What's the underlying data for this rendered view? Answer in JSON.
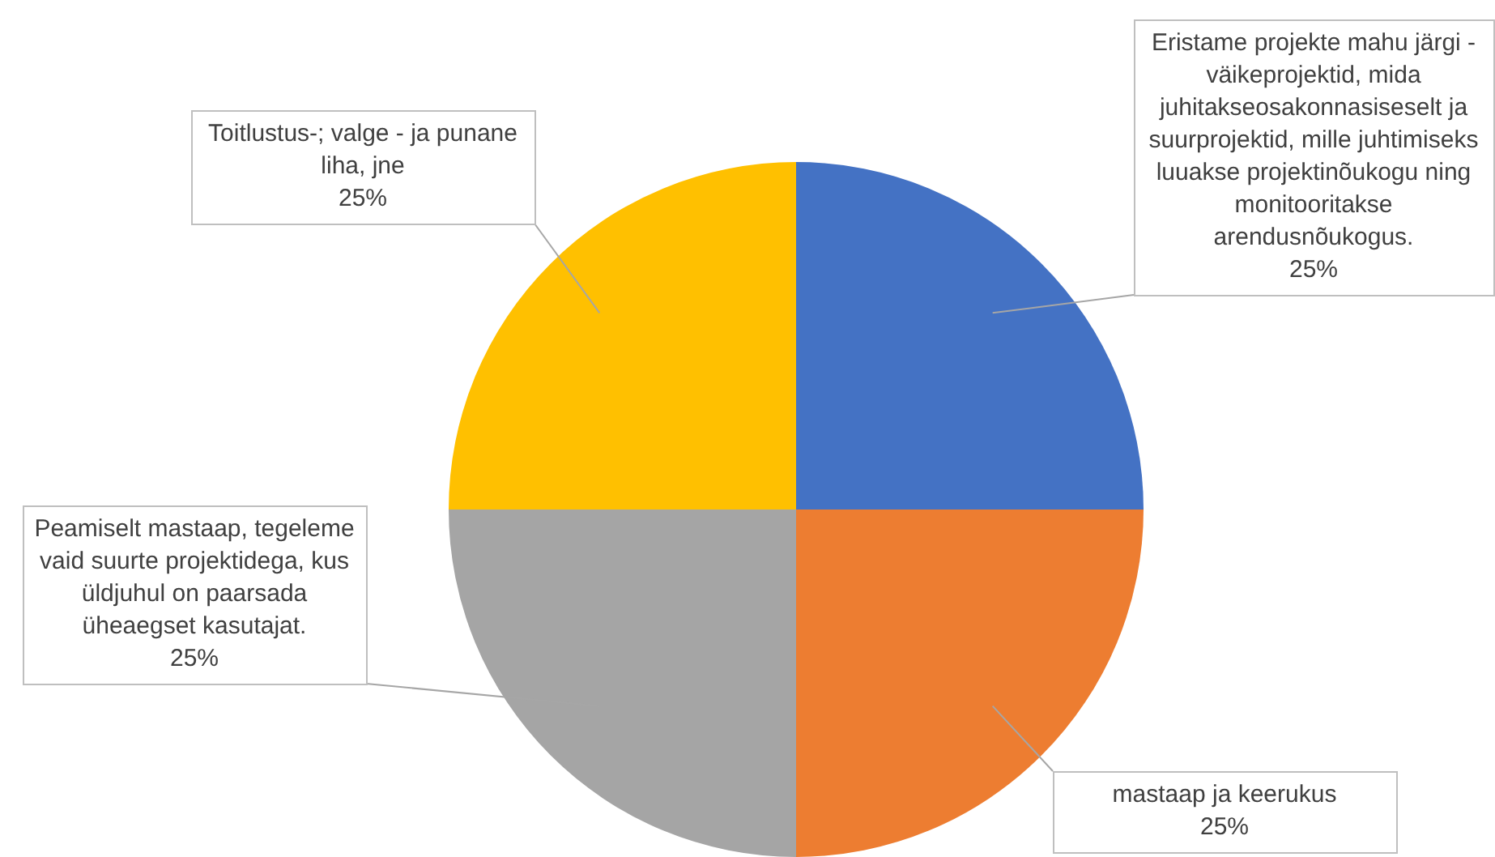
{
  "chart_data": {
    "type": "pie",
    "categories": [
      "Eristame projekte mahu järgi - väikeprojektid, mida juhitakseosakonnasiseselt ja suurprojektid, mille juhtimiseks luuakse projektinõukogu ning monitooritakse arendusnõukogus.",
      "mastaap ja keerukus",
      "Peamiselt mastaap, tegeleme vaid suurte projektidega, kus üldjuhul on paarsada üheaegset kasutajat.",
      "Toitlustus-; valge - ja punane liha, jne"
    ],
    "values": [
      25,
      25,
      25,
      25
    ],
    "colors": [
      "#4472c4",
      "#ed7d31",
      "#a5a5a5",
      "#ffc000"
    ],
    "value_labels": [
      "25%",
      "25%",
      "25%",
      "25%"
    ],
    "legend": false
  }
}
